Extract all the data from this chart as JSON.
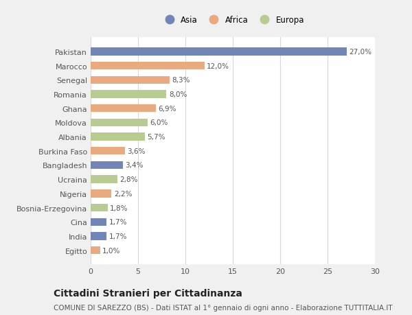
{
  "categories": [
    "Pakistan",
    "Marocco",
    "Senegal",
    "Romania",
    "Ghana",
    "Moldova",
    "Albania",
    "Burkina Faso",
    "Bangladesh",
    "Ucraina",
    "Nigeria",
    "Bosnia-Erzegovina",
    "Cina",
    "India",
    "Egitto"
  ],
  "values": [
    27.0,
    12.0,
    8.3,
    8.0,
    6.9,
    6.0,
    5.7,
    3.6,
    3.4,
    2.8,
    2.2,
    1.8,
    1.7,
    1.7,
    1.0
  ],
  "labels": [
    "27,0%",
    "12,0%",
    "8,3%",
    "8,0%",
    "6,9%",
    "6,0%",
    "5,7%",
    "3,6%",
    "3,4%",
    "2,8%",
    "2,2%",
    "1,8%",
    "1,7%",
    "1,7%",
    "1,0%"
  ],
  "continent": [
    "Asia",
    "Africa",
    "Africa",
    "Europa",
    "Africa",
    "Europa",
    "Europa",
    "Africa",
    "Asia",
    "Europa",
    "Africa",
    "Europa",
    "Asia",
    "Asia",
    "Africa"
  ],
  "colors": {
    "Asia": "#7285b7",
    "Africa": "#e8aa7e",
    "Europa": "#b8cc92"
  },
  "legend_labels": [
    "Asia",
    "Africa",
    "Europa"
  ],
  "title": "Cittadini Stranieri per Cittadinanza",
  "subtitle": "COMUNE DI SAREZZO (BS) - Dati ISTAT al 1° gennaio di ogni anno - Elaborazione TUTTITALIA.IT",
  "xlim": [
    0,
    30
  ],
  "xticks": [
    0,
    5,
    10,
    15,
    20,
    25,
    30
  ],
  "fig_bg": "#f0f0f0",
  "plot_bg": "#ffffff",
  "grid_color": "#d8d8d8",
  "text_color": "#555555",
  "label_color": "#555555",
  "title_fontsize": 10,
  "subtitle_fontsize": 7.5,
  "label_fontsize": 7.5,
  "tick_fontsize": 8,
  "legend_fontsize": 8.5,
  "bar_height": 0.55
}
